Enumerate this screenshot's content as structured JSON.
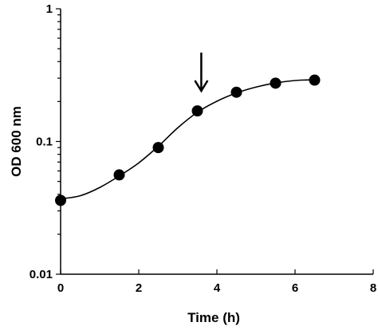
{
  "chart_data": {
    "type": "scatter",
    "xlabel": "Time (h)",
    "ylabel": "OD 600 nm",
    "xlim": [
      0,
      8
    ],
    "ylim": [
      0.01,
      1
    ],
    "yscale": "log",
    "xticks": [
      0,
      2,
      4,
      6,
      8
    ],
    "yticks": [
      0.01,
      0.1,
      1
    ],
    "ytick_labels": [
      "0.01",
      "0.1",
      "1"
    ],
    "series": [
      {
        "x": [
          0,
          1.5,
          2.5,
          3.5,
          4.5,
          5.5,
          6.5
        ],
        "y": [
          0.036,
          0.056,
          0.09,
          0.17,
          0.235,
          0.275,
          0.29
        ]
      }
    ],
    "fit_curve": {
      "x": [
        0,
        0.5,
        1.0,
        1.5,
        2.0,
        2.5,
        3.0,
        3.5,
        4.0,
        4.5,
        5.0,
        5.5,
        6.0,
        6.5
      ],
      "y": [
        0.037,
        0.039,
        0.045,
        0.055,
        0.069,
        0.092,
        0.127,
        0.166,
        0.201,
        0.232,
        0.257,
        0.276,
        0.288,
        0.292
      ]
    },
    "annotation_arrow_x": 3.6,
    "grid": false,
    "legend": "none"
  }
}
